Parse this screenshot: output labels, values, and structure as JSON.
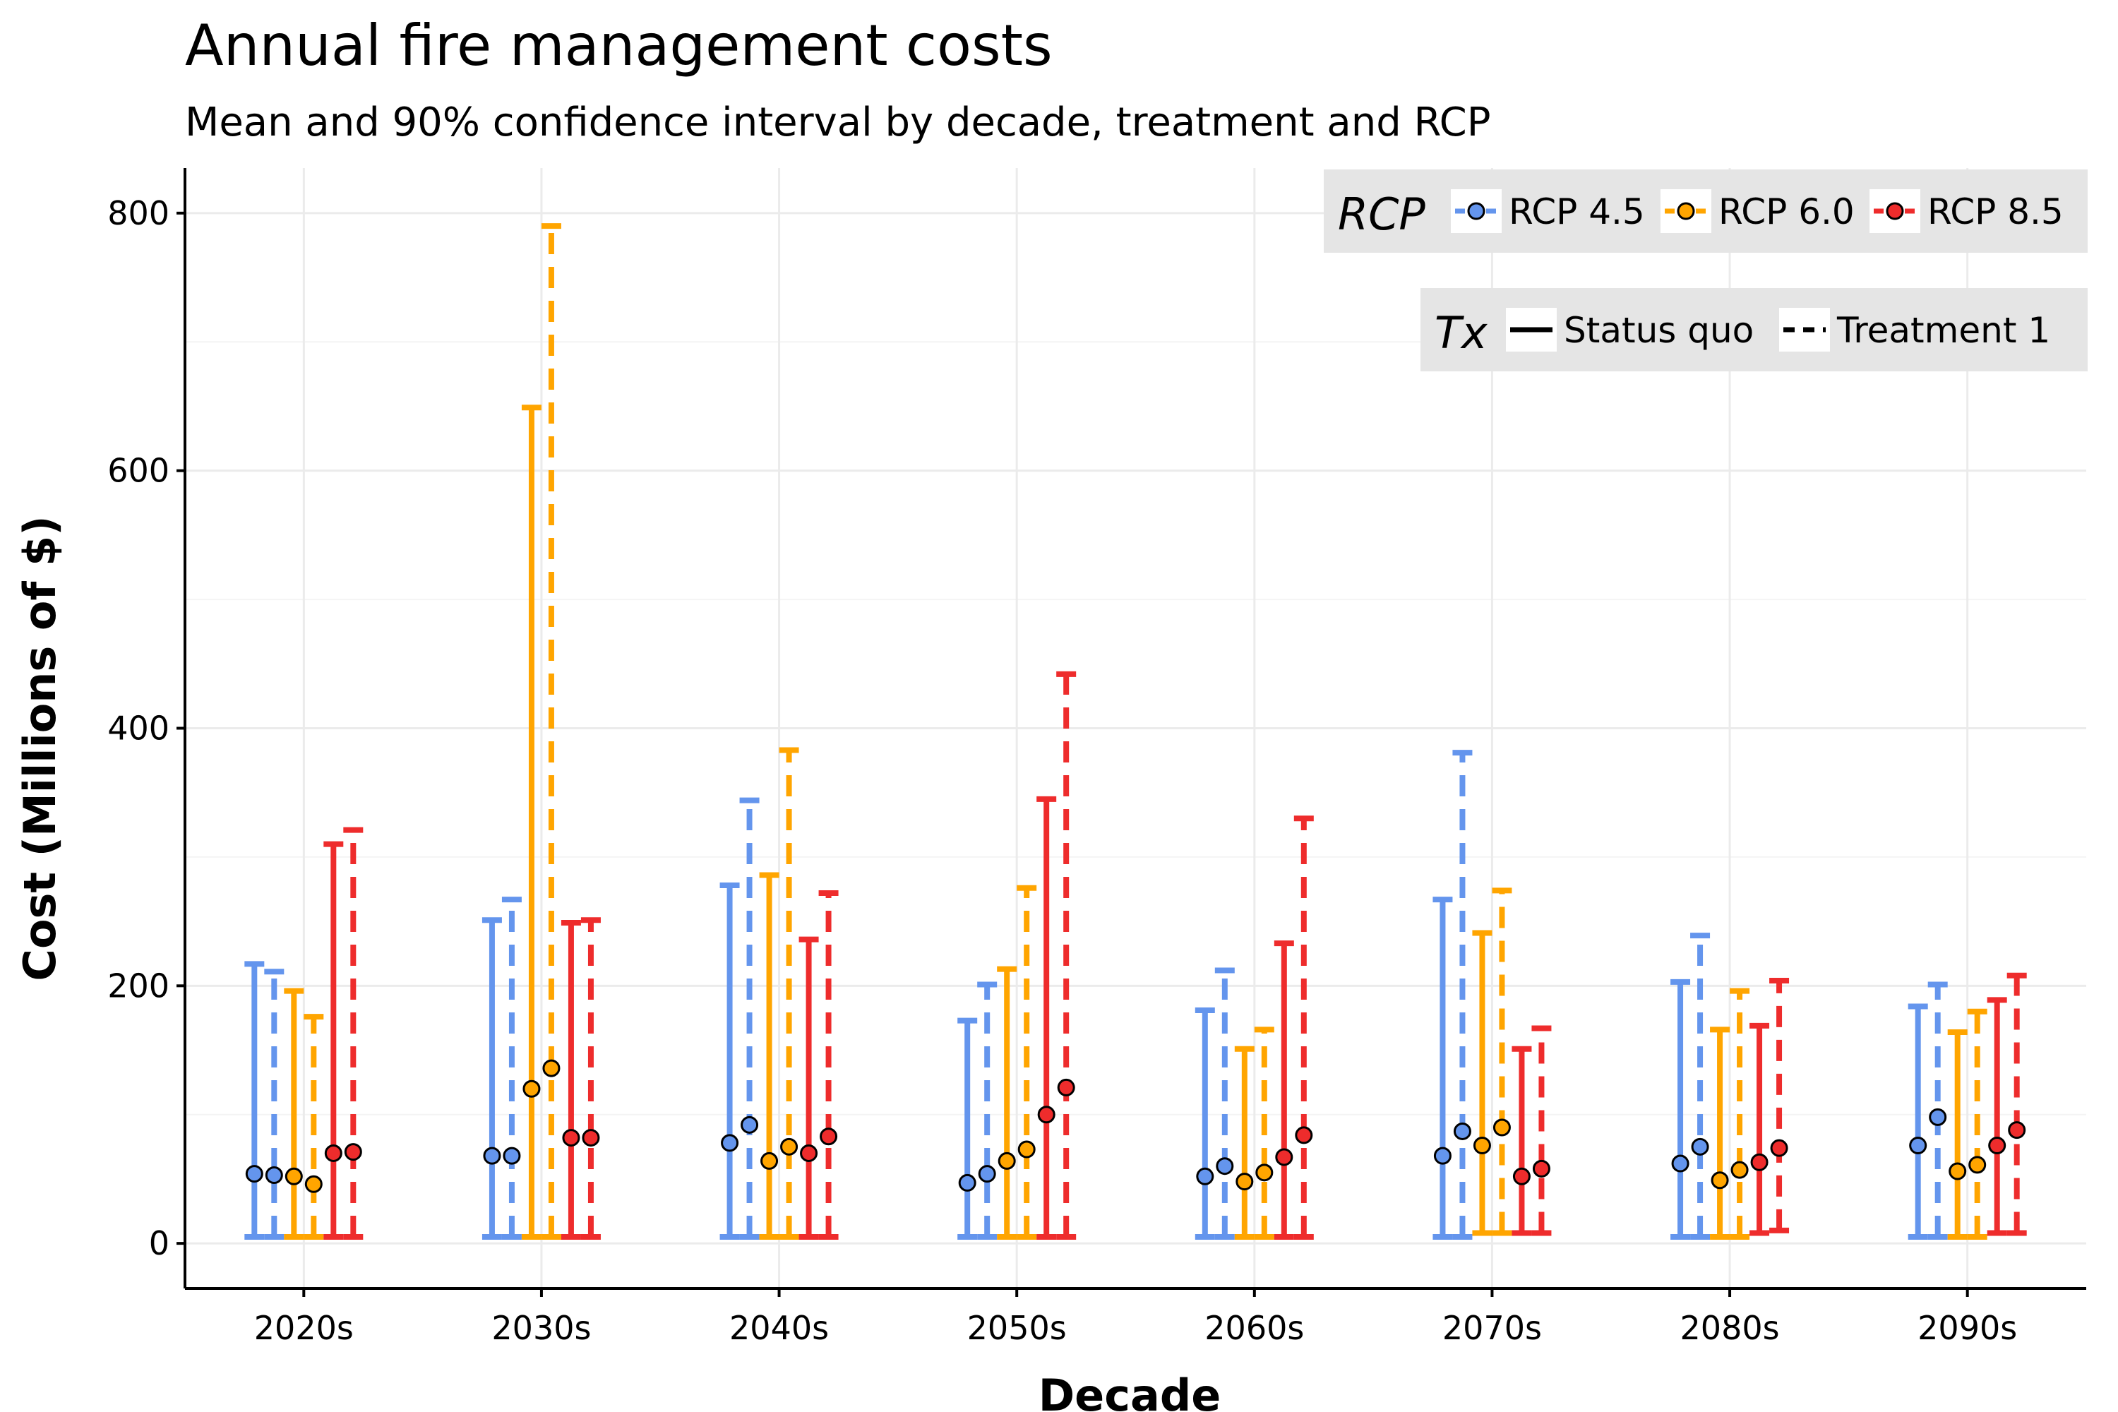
{
  "chart_data": {
    "type": "errorbar",
    "title": "Annual fire management costs",
    "subtitle": "Mean and 90% confidence interval by decade, treatment and RCP",
    "xlabel": "Decade",
    "ylabel": "Cost (Millions of $)",
    "ylim": [
      -35,
      835
    ],
    "yticks": [
      0,
      200,
      400,
      600,
      800
    ],
    "grid": true,
    "categories": [
      "2020s",
      "2030s",
      "2040s",
      "2050s",
      "2060s",
      "2070s",
      "2080s",
      "2090s"
    ],
    "legend": {
      "placement": "top-right",
      "rcp_title": "RCP",
      "tx_title": "Tx",
      "rcp": [
        {
          "label": "RCP 4.5",
          "color": "#6495ED"
        },
        {
          "label": "RCP 6.0",
          "color": "#FFA500"
        },
        {
          "label": "RCP 8.5",
          "color": "#EE2C2C"
        }
      ],
      "tx": [
        {
          "label": "Status quo",
          "dash": "solid"
        },
        {
          "label": "Treatment 1",
          "dash": "dashed"
        }
      ]
    },
    "series": [
      {
        "rcp": "RCP 4.5",
        "tx": "Status quo",
        "mean": [
          54,
          68,
          78,
          47,
          52,
          68,
          62,
          76
        ],
        "lower": [
          5,
          5,
          5,
          5,
          5,
          5,
          5,
          5
        ],
        "upper": [
          217,
          251,
          278,
          173,
          181,
          267,
          203,
          184
        ]
      },
      {
        "rcp": "RCP 4.5",
        "tx": "Treatment 1",
        "mean": [
          53,
          68,
          92,
          54,
          60,
          87,
          75,
          98
        ],
        "lower": [
          5,
          5,
          5,
          5,
          5,
          5,
          5,
          5
        ],
        "upper": [
          211,
          267,
          344,
          201,
          212,
          381,
          239,
          201
        ]
      },
      {
        "rcp": "RCP 6.0",
        "tx": "Status quo",
        "mean": [
          52,
          120,
          64,
          64,
          48,
          76,
          49,
          56
        ],
        "lower": [
          5,
          5,
          5,
          5,
          5,
          8,
          5,
          5
        ],
        "upper": [
          196,
          649,
          286,
          213,
          151,
          241,
          166,
          164
        ]
      },
      {
        "rcp": "RCP 6.0",
        "tx": "Treatment 1",
        "mean": [
          46,
          136,
          75,
          73,
          55,
          90,
          57,
          61
        ],
        "lower": [
          5,
          5,
          5,
          5,
          5,
          8,
          5,
          5
        ],
        "upper": [
          176,
          790,
          383,
          276,
          166,
          274,
          196,
          180
        ]
      },
      {
        "rcp": "RCP 8.5",
        "tx": "Status quo",
        "mean": [
          70,
          82,
          70,
          100,
          67,
          52,
          63,
          76
        ],
        "lower": [
          5,
          5,
          5,
          5,
          5,
          8,
          8,
          8
        ],
        "upper": [
          310,
          249,
          236,
          345,
          233,
          151,
          169,
          189
        ]
      },
      {
        "rcp": "RCP 8.5",
        "tx": "Treatment 1",
        "mean": [
          71,
          82,
          83,
          121,
          84,
          58,
          74,
          88
        ],
        "lower": [
          5,
          5,
          5,
          5,
          5,
          8,
          10,
          8
        ],
        "upper": [
          321,
          251,
          272,
          442,
          330,
          167,
          204,
          208
        ]
      }
    ]
  }
}
